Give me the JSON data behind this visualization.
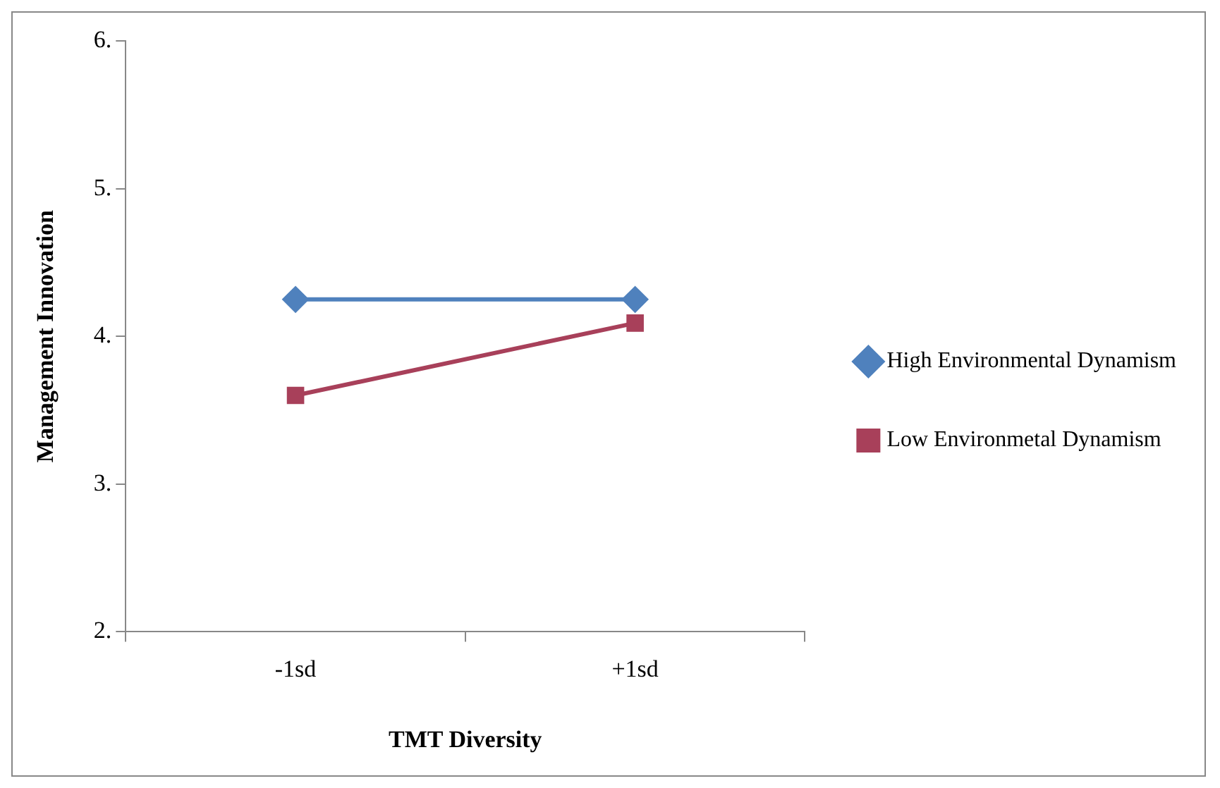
{
  "chart_data": {
    "type": "line",
    "xlabel": "TMT Diversity",
    "ylabel": "Management Innovation",
    "categories": [
      "-1sd",
      "+1sd"
    ],
    "series": [
      {
        "name": "High Environmental Dynamism",
        "color": "#4f81bd",
        "marker": "diamond",
        "values": [
          4.25,
          4.25
        ]
      },
      {
        "name": "Low Environmetal Dynamism",
        "color": "#a8405a",
        "marker": "square",
        "values": [
          3.6,
          4.09
        ]
      }
    ],
    "ylim": [
      2,
      6
    ],
    "yticks": [
      {
        "value": 2,
        "label": "2."
      },
      {
        "value": 3,
        "label": "3."
      },
      {
        "value": 4,
        "label": "4."
      },
      {
        "value": 5,
        "label": "5."
      },
      {
        "value": 6,
        "label": "6."
      }
    ],
    "grid": false,
    "legend": "right"
  }
}
